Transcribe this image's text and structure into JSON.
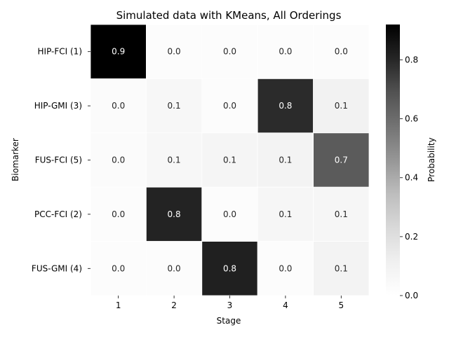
{
  "chart_data": {
    "type": "heatmap",
    "title": "Simulated data with KMeans, All Orderings",
    "xlabel": "Stage",
    "ylabel": "Biomarker",
    "x_categories": [
      "1",
      "2",
      "3",
      "4",
      "5"
    ],
    "y_categories": [
      "HIP-FCI (1)",
      "HIP-GMI (3)",
      "FUS-FCI (5)",
      "PCC-FCI (2)",
      "FUS-GMI (4)"
    ],
    "values": [
      [
        0.92,
        0.02,
        0.02,
        0.02,
        0.02
      ],
      [
        0.03,
        0.06,
        0.02,
        0.79,
        0.1
      ],
      [
        0.03,
        0.06,
        0.08,
        0.09,
        0.66
      ],
      [
        0.02,
        0.81,
        0.02,
        0.07,
        0.07
      ],
      [
        0.02,
        0.02,
        0.82,
        0.02,
        0.09
      ]
    ],
    "value_labels": [
      [
        "0.9",
        "0.0",
        "0.0",
        "0.0",
        "0.0"
      ],
      [
        "0.0",
        "0.1",
        "0.0",
        "0.8",
        "0.1"
      ],
      [
        "0.0",
        "0.1",
        "0.1",
        "0.1",
        "0.7"
      ],
      [
        "0.0",
        "0.8",
        "0.0",
        "0.1",
        "0.1"
      ],
      [
        "0.0",
        "0.0",
        "0.8",
        "0.0",
        "0.1"
      ]
    ],
    "colorbar": {
      "label": "Probability",
      "range": [
        0,
        0.92
      ],
      "ticks": [
        0.0,
        0.2,
        0.4,
        0.6,
        0.8
      ],
      "tick_labels": [
        "0.0",
        "0.2",
        "0.4",
        "0.6",
        "0.8"
      ],
      "colormap": "Greys"
    },
    "grid": false,
    "cell_borders": "white"
  }
}
